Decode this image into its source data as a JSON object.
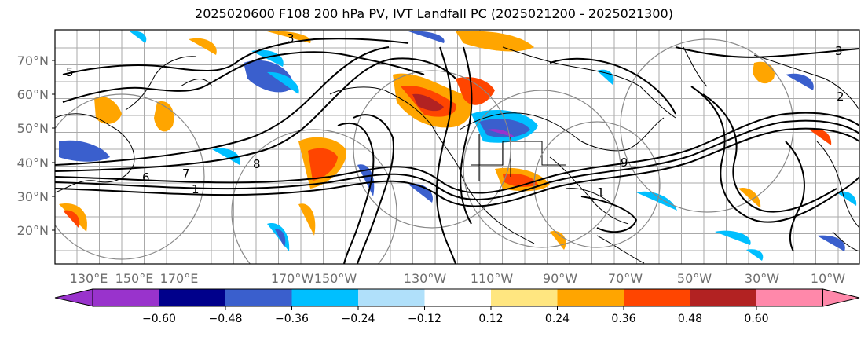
{
  "title": "2025020600 F108 200 hPa PV, IVT Landfall PC (2025021200 - 2025021300)",
  "lat_labels": [
    "70°N",
    "60°N",
    "50°N",
    "40°N",
    "30°N",
    "20°N"
  ],
  "lon_labels": [
    "130°E",
    "150°E",
    "170°E",
    "170°W",
    "150°W",
    "130°W",
    "110°W",
    "90°W",
    "70°W",
    "50°W",
    "30°W",
    "10°W"
  ],
  "colorbar": {
    "ticks": [
      "−0.60",
      "−0.48",
      "−0.36",
      "−0.24",
      "−0.12",
      "0.12",
      "0.24",
      "0.36",
      "0.48",
      "0.60"
    ],
    "colors": [
      "#9933cc",
      "#00008b",
      "#3a5fcd",
      "#00bfff",
      "#b0e0fa",
      "#ffffff",
      "#ffe680",
      "#ffa500",
      "#ff4500",
      "#b22222",
      "#ff88aa"
    ]
  },
  "contour_labels": [
    "3",
    "5",
    "6",
    "7",
    "8",
    "9",
    "1",
    "3",
    "2",
    "1"
  ]
}
